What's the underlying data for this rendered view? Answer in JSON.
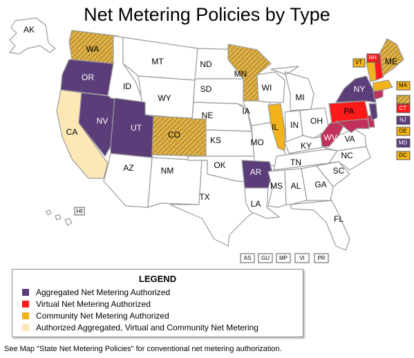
{
  "title": "Net Metering Policies by Type",
  "colors": {
    "aggregated": "#5b3d7a",
    "virtual": "#ff1a1a",
    "community": "#f2b319",
    "all": "#fde7b4",
    "multi": "#c0305a",
    "hatch": "#c99a2e",
    "none": "#ffffff"
  },
  "states": {
    "AK": "AK",
    "HI": "HI",
    "WA": "WA",
    "OR": "OR",
    "CA": "CA",
    "NV": "NV",
    "ID": "ID",
    "MT": "MT",
    "WY": "WY",
    "UT": "UT",
    "CO": "CO",
    "AZ": "AZ",
    "NM": "NM",
    "ND": "ND",
    "SD": "SD",
    "NE": "NE",
    "KS": "KS",
    "OK": "OK",
    "TX": "TX",
    "MN": "MN",
    "IA": "IA",
    "MO": "MO",
    "AR": "AR",
    "LA": "LA",
    "WI": "WI",
    "IL": "IL",
    "MI": "MI",
    "IN": "IN",
    "OH": "OH",
    "KY": "KY",
    "TN": "TN",
    "MS": "MS",
    "AL": "AL",
    "GA": "GA",
    "FL": "FL",
    "SC": "SC",
    "NC": "NC",
    "VA": "VA",
    "WV": "WV",
    "PA": "PA",
    "NY": "NY",
    "VT": "VT",
    "NH": "NH",
    "ME": "ME",
    "MA": "MA",
    "CT": "CT",
    "NJ": "NJ",
    "DE": "DE",
    "MD": "MD",
    "DC": "DC"
  },
  "territories": [
    "AS",
    "GU",
    "MP",
    "VI",
    "PR"
  ],
  "legend": {
    "title": "LEGEND",
    "items": [
      {
        "label": "Aggregated Net Metering Authorized",
        "color": "#5b3d7a"
      },
      {
        "label": "Virtual Net Metering Authorized",
        "color": "#ff1a1a"
      },
      {
        "label": "Community Net Metering Authorized",
        "color": "#f2b319"
      },
      {
        "label": "Authorized Aggregated, Virtual and Community Net Metering",
        "color": "#fde7b4"
      }
    ]
  },
  "footnote": "See Map \"State Net Metering Policies\" for conventional net metering authorization."
}
